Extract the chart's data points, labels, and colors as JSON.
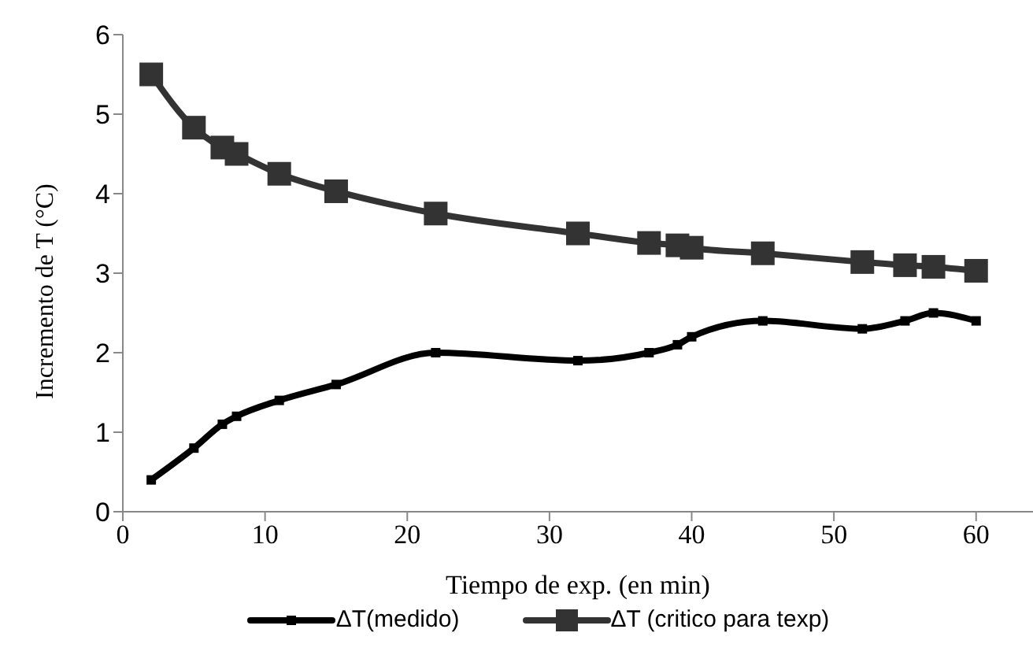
{
  "chart_data": {
    "type": "line",
    "xlabel": "Tiempo de exp. (en min)",
    "ylabel": "Incremento de T (°C)",
    "x": [
      2,
      5,
      7,
      8,
      11,
      15,
      22,
      32,
      37,
      39,
      40,
      45,
      52,
      55,
      57,
      60
    ],
    "series": [
      {
        "name": "ΔT(medido)",
        "color": "#000000",
        "marker": "square",
        "values": [
          0.4,
          0.8,
          1.1,
          1.2,
          1.4,
          1.6,
          2.0,
          1.9,
          2.0,
          2.1,
          2.2,
          2.4,
          2.3,
          2.4,
          2.5,
          2.4
        ]
      },
      {
        "name": "ΔT (critico para texp)",
        "color": "#333333",
        "marker": "square",
        "values": [
          5.5,
          4.83,
          4.58,
          4.5,
          4.25,
          4.03,
          3.75,
          3.5,
          3.38,
          3.35,
          3.32,
          3.25,
          3.14,
          3.1,
          3.08,
          3.03
        ]
      }
    ],
    "xlim": [
      0,
      64
    ],
    "xticks": [
      0,
      10,
      20,
      30,
      40,
      50,
      60
    ],
    "ylim": [
      0,
      6
    ],
    "yticks": [
      0,
      1,
      2,
      3,
      4,
      5,
      6
    ],
    "grid": false,
    "legend": "bottom"
  }
}
